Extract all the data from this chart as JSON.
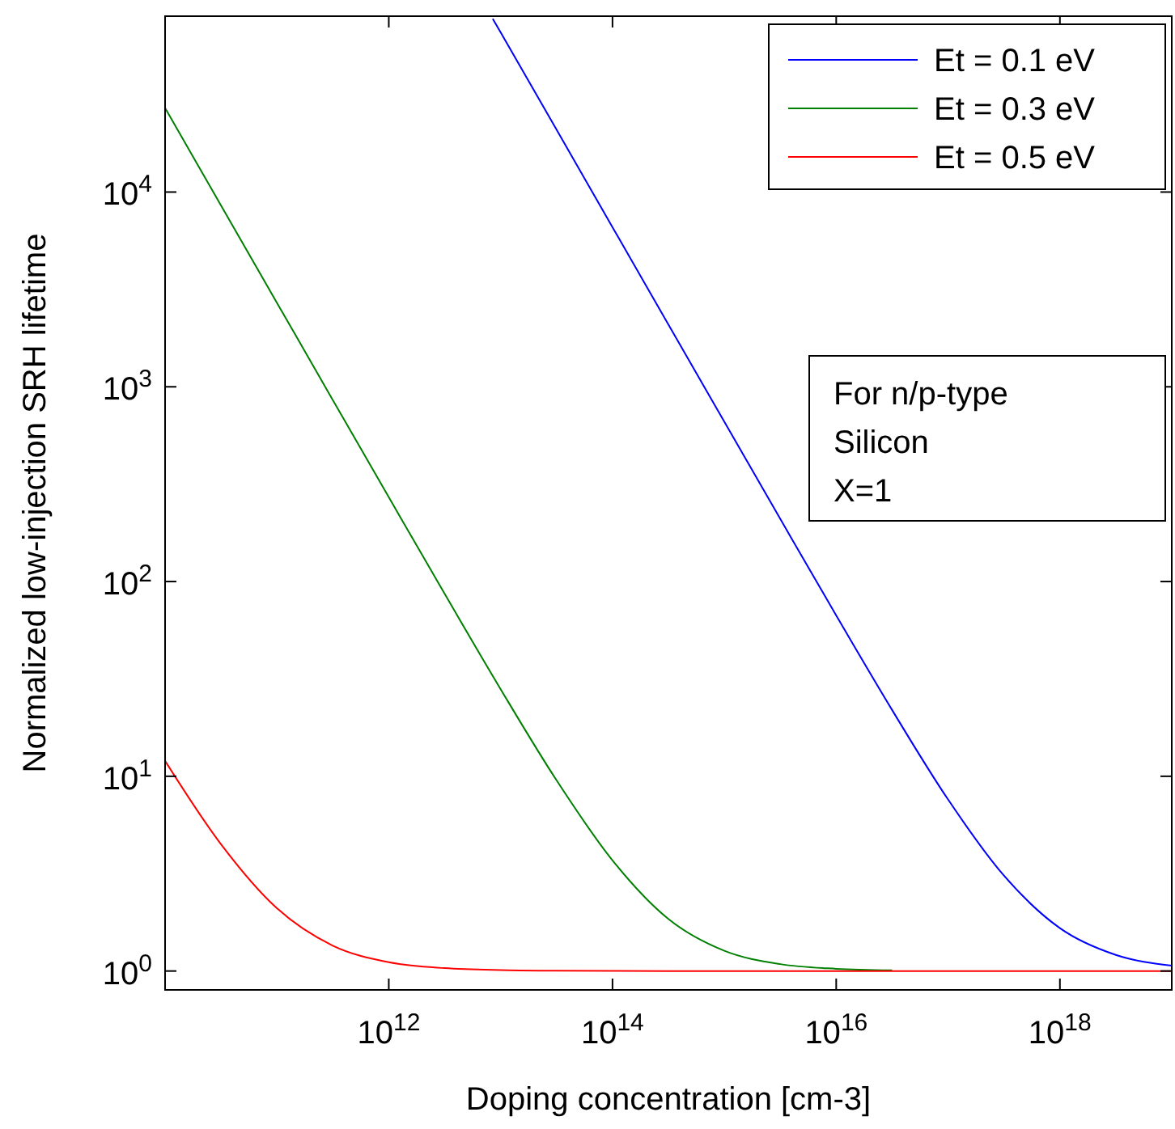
{
  "chart_data": {
    "type": "line",
    "xlabel": "Doping concentration [cm-3]",
    "ylabel": "Normalized low-injection SRH lifetime",
    "log": "xy",
    "xlim": [
      10000000000.0,
      1e+19
    ],
    "ylim": [
      0.8,
      80000
    ],
    "xticks": [
      {
        "value": 1000000000000.0,
        "label": "10$^{12}$"
      },
      {
        "value": 100000000000000.0,
        "label": "10$^{14}$"
      },
      {
        "value": 1e+16,
        "label": "10$^{16}$"
      },
      {
        "value": 1e+18,
        "label": "10$^{18}$"
      }
    ],
    "yticks": [
      {
        "value": 1,
        "label": "10$^{0}$"
      },
      {
        "value": 10,
        "label": "10$^{1}$"
      },
      {
        "value": 100,
        "label": "10$^{2}$"
      },
      {
        "value": 1000,
        "label": "10$^{3}$"
      },
      {
        "value": 10000,
        "label": "10$^{4}$"
      }
    ],
    "grid": false,
    "legend": "top right",
    "line_style": "solid",
    "annotations": [
      "For n/p-type\nSilicon\nX=1"
    ],
    "series": [
      {
        "name": "Et = 0.1 eV",
        "color": "#0000ff",
        "x": [
          8500000000000.0,
          10000000000000.0,
          31600000000000.0,
          100000000000000.0,
          316000000000000.0,
          1000000000000000.0,
          3160000000000000.0,
          1e+16,
          3.16e+16,
          1e+17,
          3.16e+17,
          1e+18,
          3.16e+18,
          1e+19
        ],
        "values": [
          77600,
          66000,
          20900,
          6600,
          2090,
          661,
          210,
          67,
          21.9,
          7.6,
          3.09,
          1.66,
          1.21,
          1.066
        ]
      },
      {
        "name": "Et = 0.3 eV",
        "color": "#008000",
        "x": [
          10000000000.0,
          31600000000.0,
          100000000000.0,
          316000000000.0,
          1000000000000.0,
          3160000000000.0,
          10000000000000.0,
          31600000000000.0,
          100000000000000.0,
          316000000000000.0,
          1000000000000000.0,
          3160000000000000.0,
          1e+16,
          3.16e+16
        ],
        "values": [
          27000,
          8540,
          2700,
          855,
          271,
          86.4,
          28,
          9.54,
          3.7,
          1.85,
          1.27,
          1.085,
          1.027,
          1.0085
        ]
      },
      {
        "name": "Et = 0.5 eV",
        "color": "#ff0000",
        "x": [
          10000000000.0,
          31600000000.0,
          100000000000.0,
          316000000000.0,
          1000000000000.0,
          3160000000000.0,
          10000000000000.0,
          31600000000000.0,
          100000000000000.0,
          316000000000000.0,
          1000000000000000.0,
          3160000000000000.0,
          1e+16,
          3.16e+16,
          1e+17,
          3.16e+17,
          1e+18,
          3.16e+18,
          1e+19
        ],
        "values": [
          12,
          4.48,
          2.1,
          1.35,
          1.11,
          1.035,
          1.011,
          1.0035,
          1.001,
          1,
          1,
          1,
          1,
          1,
          1,
          1,
          1,
          1,
          1
        ]
      }
    ]
  }
}
